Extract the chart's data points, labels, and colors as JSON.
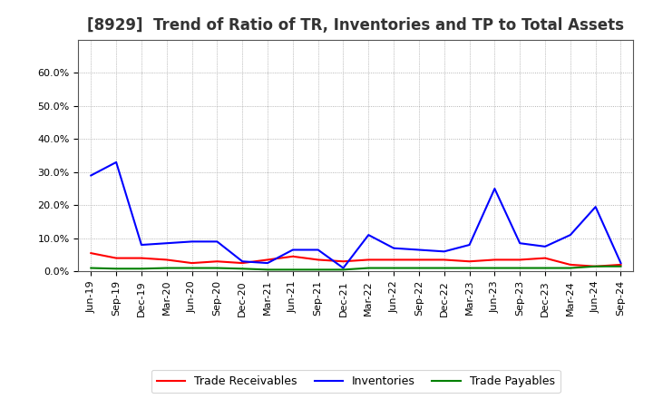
{
  "title": "[8929]  Trend of Ratio of TR, Inventories and TP to Total Assets",
  "x_labels": [
    "Jun-19",
    "Sep-19",
    "Dec-19",
    "Mar-20",
    "Jun-20",
    "Sep-20",
    "Dec-20",
    "Mar-21",
    "Jun-21",
    "Sep-21",
    "Dec-21",
    "Mar-22",
    "Jun-22",
    "Sep-22",
    "Dec-22",
    "Mar-23",
    "Jun-23",
    "Sep-23",
    "Dec-23",
    "Mar-24",
    "Jun-24",
    "Sep-24"
  ],
  "trade_receivables": [
    5.5,
    4.0,
    4.0,
    3.5,
    2.5,
    3.0,
    2.5,
    3.5,
    4.5,
    3.5,
    3.0,
    3.5,
    3.5,
    3.5,
    3.5,
    3.0,
    3.5,
    3.5,
    4.0,
    2.0,
    1.5,
    2.0
  ],
  "inventories": [
    29.0,
    33.0,
    8.0,
    8.5,
    9.0,
    9.0,
    3.0,
    2.5,
    6.5,
    6.5,
    1.0,
    11.0,
    7.0,
    6.5,
    6.0,
    8.0,
    25.0,
    8.5,
    7.5,
    11.0,
    19.5,
    2.5
  ],
  "trade_payables": [
    1.0,
    0.8,
    0.8,
    1.0,
    1.0,
    1.0,
    0.8,
    0.5,
    0.5,
    0.5,
    0.5,
    1.0,
    1.0,
    1.0,
    1.0,
    1.0,
    1.0,
    1.0,
    1.0,
    1.0,
    1.5,
    1.5
  ],
  "ylim": [
    0,
    70
  ],
  "yticks": [
    0,
    10,
    20,
    30,
    40,
    50,
    60
  ],
  "ytick_labels": [
    "0.0%",
    "10.0%",
    "20.0%",
    "30.0%",
    "40.0%",
    "50.0%",
    "60.0%"
  ],
  "color_tr": "#FF0000",
  "color_inv": "#0000FF",
  "color_tp": "#008000",
  "legend_labels": [
    "Trade Receivables",
    "Inventories",
    "Trade Payables"
  ],
  "background_color": "#FFFFFF",
  "plot_bg_color": "#FFFFFF",
  "grid_color": "#888888",
  "title_fontsize": 12,
  "axis_fontsize": 8,
  "legend_fontsize": 9
}
